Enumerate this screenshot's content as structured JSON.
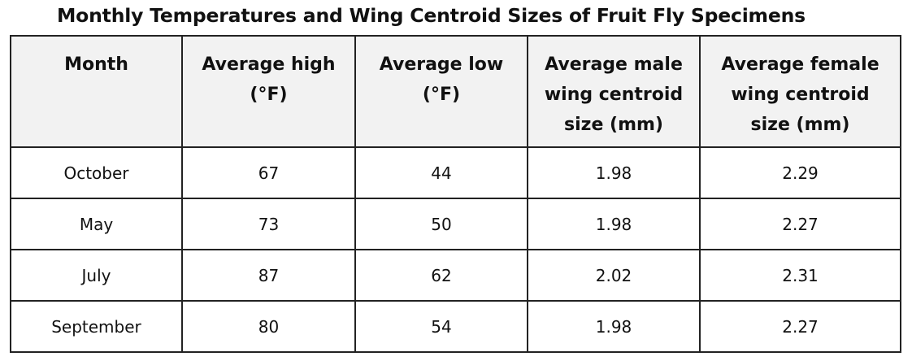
{
  "title": "Monthly Temperatures and Wing Centroid Sizes of Fruit Fly Specimens",
  "table": {
    "headers": [
      [
        "Month"
      ],
      [
        "Average high",
        "(°F)"
      ],
      [
        "Average low",
        "(°F)"
      ],
      [
        "Average male",
        "wing centroid",
        "size (mm)"
      ],
      [
        "Average female",
        "wing centroid",
        "size (mm)"
      ]
    ],
    "rows": [
      [
        "October",
        "67",
        "44",
        "1.98",
        "2.29"
      ],
      [
        "May",
        "73",
        "50",
        "1.98",
        "2.27"
      ],
      [
        "July",
        "87",
        "62",
        "2.02",
        "2.31"
      ],
      [
        "September",
        "80",
        "54",
        "1.98",
        "2.27"
      ]
    ]
  }
}
